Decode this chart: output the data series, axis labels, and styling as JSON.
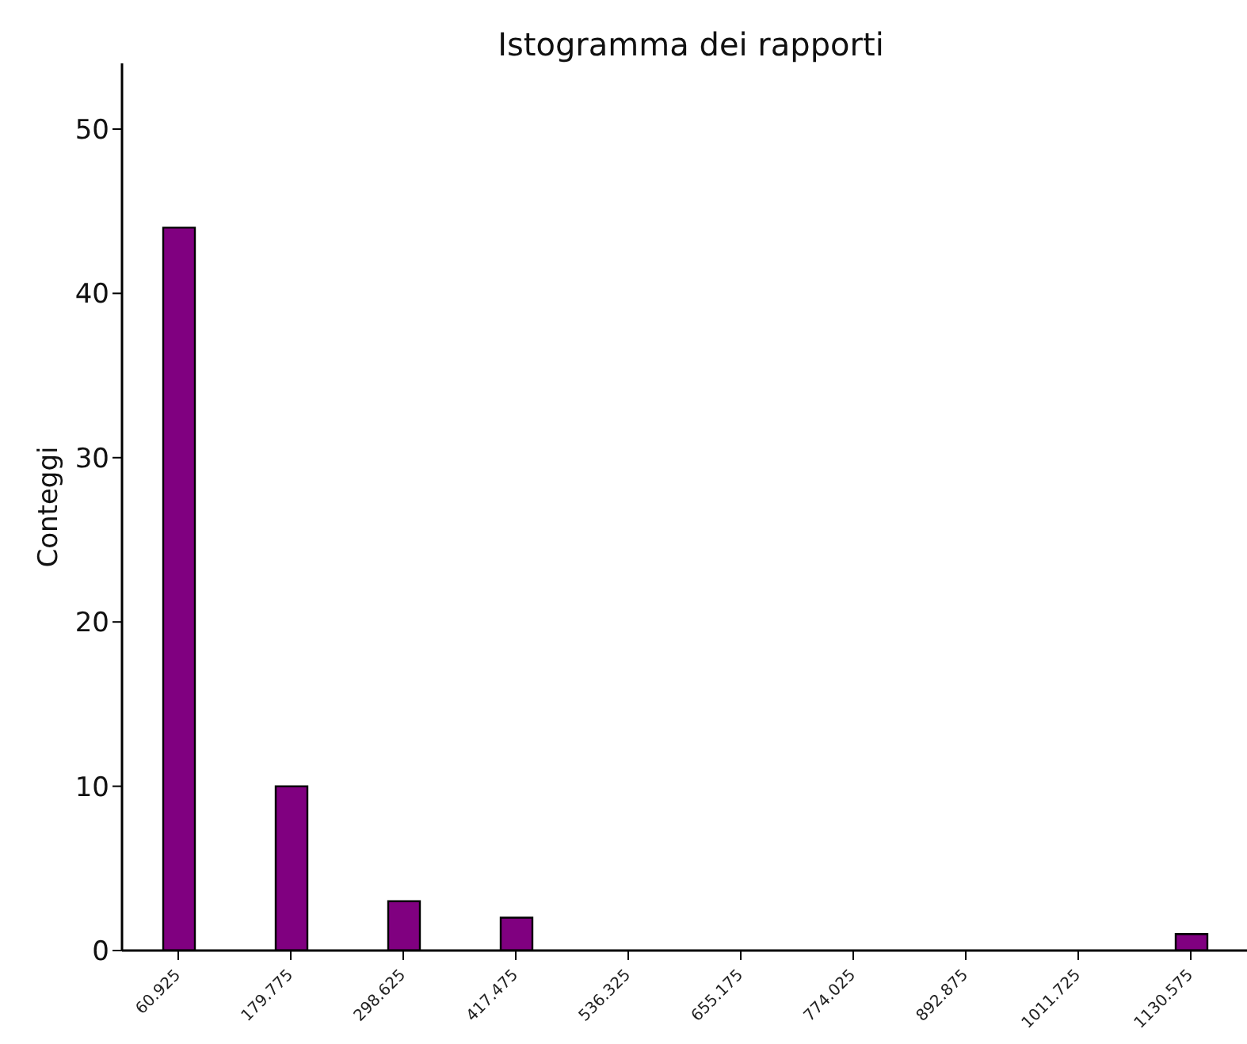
{
  "chart_data": {
    "type": "bar",
    "title": "Istogramma dei rapporti",
    "ylabel": "Conteggi",
    "categories": [
      "60.925",
      "179.775",
      "298.625",
      "417.475",
      "536.325",
      "655.175",
      "774.025",
      "892.875",
      "1011.725",
      "1130.575"
    ],
    "values": [
      44,
      10,
      3,
      2,
      0,
      0,
      0,
      0,
      0,
      1
    ],
    "color": "#800080",
    "ylim": [
      0,
      54
    ],
    "yticks": [
      0,
      10,
      20,
      30,
      40,
      50
    ],
    "grid": false,
    "legend": false
  }
}
